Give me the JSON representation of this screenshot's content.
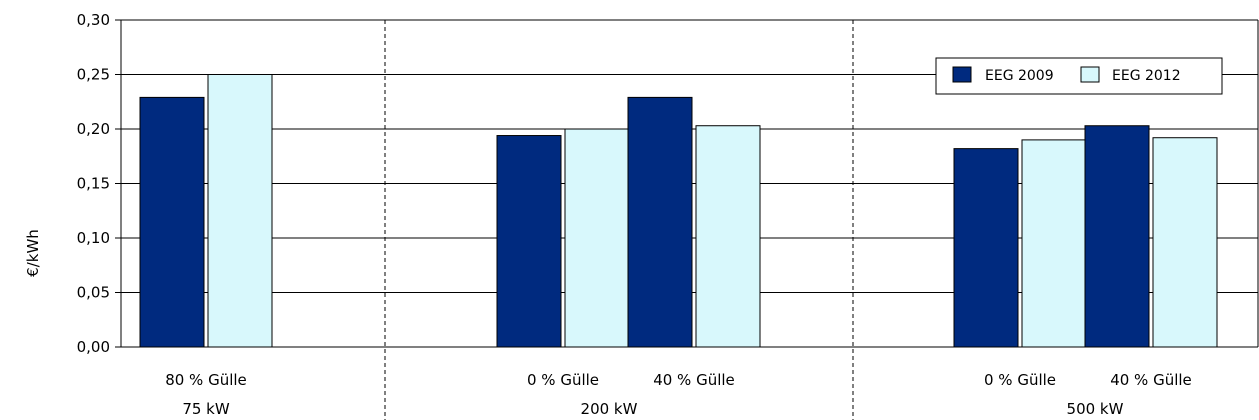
{
  "chart_data": {
    "type": "bar",
    "title": "",
    "xlabel": "",
    "ylabel": "€/kWh",
    "ylim": [
      0,
      0.3
    ],
    "yticks": [
      0,
      0.05,
      0.1,
      0.15,
      0.2,
      0.25,
      0.3
    ],
    "ytick_labels": [
      "0,00",
      "0,05",
      "0,10",
      "0,15",
      "0,20",
      "0,25",
      "0,30"
    ],
    "grid": "horizontal",
    "legend_position": "top-right",
    "groups": [
      {
        "label": "75 kW",
        "categories": [
          "80 % Gülle"
        ]
      },
      {
        "label": "200 kW",
        "categories": [
          "0 % Gülle",
          "40 % Gülle"
        ]
      },
      {
        "label": "500 kW",
        "categories": [
          "0 % Gülle",
          "40 % Gülle"
        ]
      }
    ],
    "categories": [
      "80 % Gülle",
      "0 % Gülle",
      "40 % Gülle",
      "0 % Gülle",
      "40 % Gülle"
    ],
    "series": [
      {
        "name": "EEG 2009",
        "color": "#002a7f",
        "values": [
          0.229,
          0.194,
          0.229,
          0.182,
          0.203
        ]
      },
      {
        "name": "EEG 2012",
        "color": "#d8f8fc",
        "values": [
          0.25,
          0.2,
          0.203,
          0.19,
          0.192
        ]
      }
    ]
  }
}
